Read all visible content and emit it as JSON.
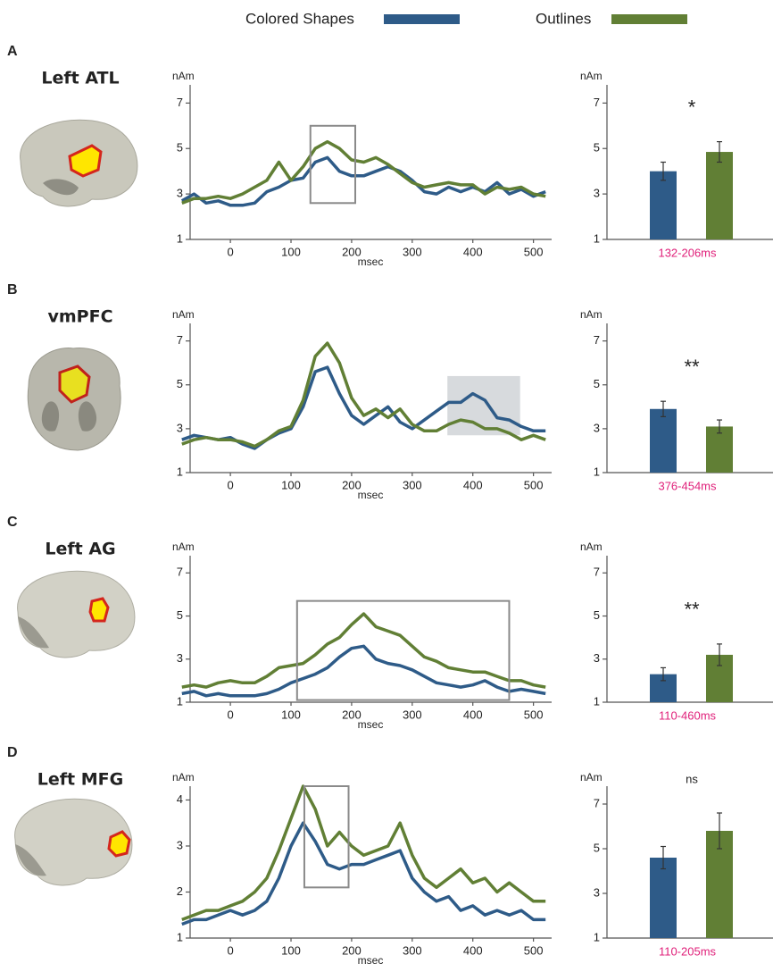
{
  "legend": [
    {
      "name": "Colored Shapes",
      "color": "#2e5b88"
    },
    {
      "name": "Outlines",
      "color": "#617f35"
    }
  ],
  "chart_data": [
    {
      "type": "line",
      "panel": "A",
      "region": "Left ATL",
      "y_label": "nAm",
      "x_label": "msec",
      "x": [
        -80,
        -60,
        -40,
        -20,
        0,
        20,
        40,
        60,
        80,
        100,
        120,
        140,
        160,
        180,
        200,
        220,
        240,
        260,
        280,
        300,
        320,
        340,
        360,
        380,
        400,
        420,
        440,
        460,
        480,
        500,
        520
      ],
      "xlim": [
        -90,
        530
      ],
      "ylim": [
        1,
        7.8
      ],
      "xticks": [
        0,
        100,
        200,
        300,
        400,
        500
      ],
      "yticks": [
        1,
        3,
        5,
        7
      ],
      "window": {
        "x": [
          132,
          206
        ],
        "y": [
          2.6,
          6.0
        ],
        "style": "outline"
      },
      "series": [
        {
          "color": "#2e5b88",
          "values": [
            2.7,
            3.0,
            2.6,
            2.7,
            2.5,
            2.5,
            2.6,
            3.1,
            3.3,
            3.6,
            3.7,
            4.4,
            4.6,
            4.0,
            3.8,
            3.8,
            4.0,
            4.2,
            4.0,
            3.6,
            3.1,
            3.0,
            3.3,
            3.1,
            3.3,
            3.1,
            3.5,
            3.0,
            3.2,
            2.9,
            3.1
          ]
        },
        {
          "color": "#617f35",
          "values": [
            2.6,
            2.8,
            2.8,
            2.9,
            2.8,
            3.0,
            3.3,
            3.6,
            4.4,
            3.6,
            4.2,
            5.0,
            5.3,
            5.0,
            4.5,
            4.4,
            4.6,
            4.3,
            3.9,
            3.5,
            3.3,
            3.4,
            3.5,
            3.4,
            3.4,
            3.0,
            3.3,
            3.2,
            3.3,
            3.0,
            2.9
          ]
        }
      ]
    },
    {
      "type": "bar",
      "y_label": "nAm",
      "x_label": "132-206ms",
      "annotation": "*",
      "ylim": [
        1,
        7.8
      ],
      "yticks": [
        1,
        3,
        5,
        7
      ],
      "values": [
        4.0,
        4.85
      ],
      "errors": [
        0.4,
        0.45
      ],
      "colors": [
        "#2e5b88",
        "#617f35"
      ]
    },
    {
      "type": "line",
      "panel": "B",
      "region": "vmPFC",
      "y_label": "nAm",
      "x_label": "msec",
      "x": [
        -80,
        -60,
        -40,
        -20,
        0,
        20,
        40,
        60,
        80,
        100,
        120,
        140,
        160,
        180,
        200,
        220,
        240,
        260,
        280,
        300,
        320,
        340,
        360,
        380,
        400,
        420,
        440,
        460,
        480,
        500,
        520
      ],
      "xlim": [
        -90,
        530
      ],
      "ylim": [
        1,
        7.8
      ],
      "xticks": [
        0,
        100,
        200,
        300,
        400,
        500
      ],
      "yticks": [
        1,
        3,
        5,
        7
      ],
      "window": {
        "x": [
          358,
          478
        ],
        "y": [
          2.7,
          5.4
        ],
        "style": "shaded"
      },
      "series": [
        {
          "color": "#2e5b88",
          "values": [
            2.5,
            2.7,
            2.6,
            2.5,
            2.6,
            2.3,
            2.1,
            2.5,
            2.8,
            3.0,
            4.0,
            5.6,
            5.8,
            4.6,
            3.6,
            3.2,
            3.6,
            4.0,
            3.3,
            3.0,
            3.4,
            3.8,
            4.2,
            4.2,
            4.6,
            4.3,
            3.5,
            3.4,
            3.1,
            2.9,
            2.9
          ]
        },
        {
          "color": "#617f35",
          "values": [
            2.3,
            2.5,
            2.6,
            2.5,
            2.5,
            2.4,
            2.2,
            2.5,
            2.9,
            3.1,
            4.3,
            6.3,
            6.9,
            6.0,
            4.4,
            3.6,
            3.9,
            3.5,
            3.9,
            3.2,
            2.9,
            2.9,
            3.2,
            3.4,
            3.3,
            3.0,
            3.0,
            2.8,
            2.5,
            2.7,
            2.5
          ]
        }
      ]
    },
    {
      "type": "bar",
      "y_label": "nAm",
      "x_label": "376-454ms",
      "annotation": "**",
      "ylim": [
        1,
        7.8
      ],
      "yticks": [
        1,
        3,
        5,
        7
      ],
      "values": [
        3.9,
        3.1
      ],
      "errors": [
        0.35,
        0.3
      ],
      "colors": [
        "#2e5b88",
        "#617f35"
      ]
    },
    {
      "type": "line",
      "panel": "C",
      "region": "Left AG",
      "y_label": "nAm",
      "x_label": "msec",
      "x": [
        -80,
        -60,
        -40,
        -20,
        0,
        20,
        40,
        60,
        80,
        100,
        120,
        140,
        160,
        180,
        200,
        220,
        240,
        260,
        280,
        300,
        320,
        340,
        360,
        380,
        400,
        420,
        440,
        460,
        480,
        500,
        520
      ],
      "xlim": [
        -90,
        530
      ],
      "ylim": [
        1,
        7.8
      ],
      "xticks": [
        0,
        100,
        200,
        300,
        400,
        500
      ],
      "yticks": [
        1,
        3,
        5,
        7
      ],
      "window": {
        "x": [
          110,
          460
        ],
        "y": [
          1.1,
          5.7
        ],
        "style": "outline"
      },
      "series": [
        {
          "color": "#2e5b88",
          "values": [
            1.4,
            1.5,
            1.3,
            1.4,
            1.3,
            1.3,
            1.3,
            1.4,
            1.6,
            1.9,
            2.1,
            2.3,
            2.6,
            3.1,
            3.5,
            3.6,
            3.0,
            2.8,
            2.7,
            2.5,
            2.2,
            1.9,
            1.8,
            1.7,
            1.8,
            2.0,
            1.7,
            1.5,
            1.6,
            1.5,
            1.4
          ]
        },
        {
          "color": "#617f35",
          "values": [
            1.7,
            1.8,
            1.7,
            1.9,
            2.0,
            1.9,
            1.9,
            2.2,
            2.6,
            2.7,
            2.8,
            3.2,
            3.7,
            4.0,
            4.6,
            5.1,
            4.5,
            4.3,
            4.1,
            3.6,
            3.1,
            2.9,
            2.6,
            2.5,
            2.4,
            2.4,
            2.2,
            2.0,
            2.0,
            1.8,
            1.7
          ]
        }
      ]
    },
    {
      "type": "bar",
      "y_label": "nAm",
      "x_label": "110-460ms",
      "annotation": "**",
      "ylim": [
        1,
        7.8
      ],
      "yticks": [
        1,
        3,
        5,
        7
      ],
      "values": [
        2.3,
        3.2
      ],
      "errors": [
        0.3,
        0.5
      ],
      "colors": [
        "#2e5b88",
        "#617f35"
      ]
    },
    {
      "type": "line",
      "panel": "D",
      "region": "Left MFG",
      "y_label": "nAm",
      "x_label": "msec",
      "x": [
        -80,
        -60,
        -40,
        -20,
        0,
        20,
        40,
        60,
        80,
        100,
        120,
        140,
        160,
        180,
        200,
        220,
        240,
        260,
        280,
        300,
        320,
        340,
        360,
        380,
        400,
        420,
        440,
        460,
        480,
        500,
        520
      ],
      "xlim": [
        -90,
        530
      ],
      "ylim": [
        1,
        4.3
      ],
      "xticks": [
        0,
        100,
        200,
        300,
        400,
        500
      ],
      "yticks": [
        1,
        2,
        3,
        4
      ],
      "window": {
        "x": [
          122,
          195
        ],
        "y": [
          2.1,
          4.3
        ],
        "style": "outline"
      },
      "series": [
        {
          "color": "#2e5b88",
          "values": [
            1.3,
            1.4,
            1.4,
            1.5,
            1.6,
            1.5,
            1.6,
            1.8,
            2.3,
            3.0,
            3.5,
            3.1,
            2.6,
            2.5,
            2.6,
            2.6,
            2.7,
            2.8,
            2.9,
            2.3,
            2.0,
            1.8,
            1.9,
            1.6,
            1.7,
            1.5,
            1.6,
            1.5,
            1.6,
            1.4,
            1.4
          ]
        },
        {
          "color": "#617f35",
          "values": [
            1.4,
            1.5,
            1.6,
            1.6,
            1.7,
            1.8,
            2.0,
            2.3,
            2.9,
            3.6,
            4.3,
            3.8,
            3.0,
            3.3,
            3.0,
            2.8,
            2.9,
            3.0,
            3.5,
            2.8,
            2.3,
            2.1,
            2.3,
            2.5,
            2.2,
            2.3,
            2.0,
            2.2,
            2.0,
            1.8,
            1.8
          ]
        }
      ]
    },
    {
      "type": "bar",
      "y_label": "nAm",
      "x_label": "110-205ms",
      "annotation": "ns",
      "ylim": [
        1,
        7.8
      ],
      "yticks": [
        1,
        3,
        5,
        7
      ],
      "values": [
        4.6,
        5.8
      ],
      "errors": [
        0.5,
        0.8
      ],
      "colors": [
        "#2e5b88",
        "#617f35"
      ]
    }
  ]
}
